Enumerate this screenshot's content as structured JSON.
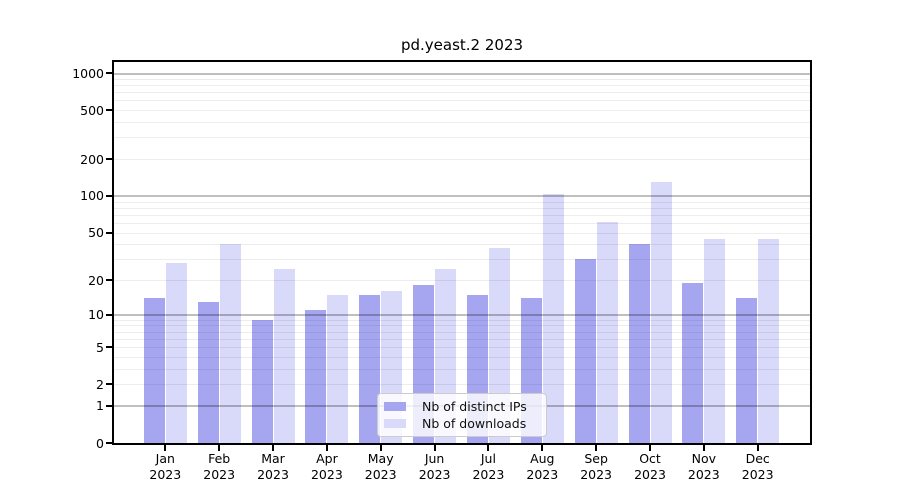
{
  "title": "pd.yeast.2 2023",
  "chart_data": {
    "type": "bar",
    "title": "pd.yeast.2 2023",
    "yscale": "log1p",
    "ylim": [
      0,
      1250
    ],
    "grid": "major and minor horizontal gridlines, drawn over bars",
    "legend_position": "lower center inside plot",
    "year": "2023",
    "categories": [
      "Jan 2023",
      "Feb 2023",
      "Mar 2023",
      "Apr 2023",
      "May 2023",
      "Jun 2023",
      "Jul 2023",
      "Aug 2023",
      "Sep 2023",
      "Oct 2023",
      "Nov 2023",
      "Dec 2023"
    ],
    "x_tick_labels": [
      {
        "month": "Jan",
        "year": "2023"
      },
      {
        "month": "Feb",
        "year": "2023"
      },
      {
        "month": "Mar",
        "year": "2023"
      },
      {
        "month": "Apr",
        "year": "2023"
      },
      {
        "month": "May",
        "year": "2023"
      },
      {
        "month": "Jun",
        "year": "2023"
      },
      {
        "month": "Jul",
        "year": "2023"
      },
      {
        "month": "Aug",
        "year": "2023"
      },
      {
        "month": "Sep",
        "year": "2023"
      },
      {
        "month": "Oct",
        "year": "2023"
      },
      {
        "month": "Nov",
        "year": "2023"
      },
      {
        "month": "Dec",
        "year": "2023"
      }
    ],
    "ytick_values": [
      0,
      1,
      2,
      5,
      10,
      20,
      50,
      100,
      200,
      500,
      1000
    ],
    "ytick_labels": [
      "0",
      "1",
      "2",
      "5",
      "10",
      "20",
      "50",
      "100",
      "200",
      "500",
      "1000"
    ],
    "grid_major_values": [
      1,
      10,
      100,
      1000
    ],
    "grid_minor_values": [
      2,
      3,
      4,
      5,
      6,
      7,
      8,
      9,
      20,
      30,
      40,
      50,
      60,
      70,
      80,
      90,
      200,
      300,
      400,
      500,
      600,
      700,
      800,
      900
    ],
    "series": [
      {
        "name": "Nb of distinct IPs",
        "color": "#a6a6f0",
        "values": [
          14,
          13,
          9,
          11,
          15,
          18,
          15,
          14,
          30,
          40,
          19,
          14
        ]
      },
      {
        "name": "Nb of downloads",
        "color": "#d9d9f9",
        "values": [
          28,
          40,
          25,
          15,
          16,
          25,
          37,
          104,
          61,
          129,
          44,
          44
        ]
      }
    ]
  },
  "legend": {
    "items": [
      {
        "label": "Nb of distinct IPs",
        "color": "#a6a6f0"
      },
      {
        "label": "Nb of downloads",
        "color": "#d9d9f9"
      }
    ]
  },
  "colors": {
    "background": "#ffffff",
    "spine": "#000000",
    "grid_major": "#bfbfbf",
    "grid_minor": "#ededed",
    "bar_distinct_ips": "#a6a6f0",
    "bar_downloads": "#d9d9f9"
  }
}
